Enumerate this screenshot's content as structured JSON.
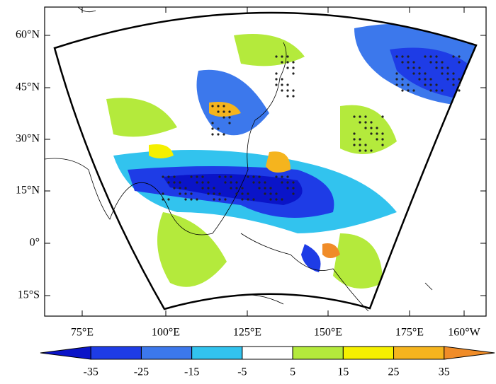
{
  "map": {
    "lat_labels": [
      "60°N",
      "45°N",
      "30°N",
      "15°N",
      "0°",
      "15°S"
    ],
    "lon_labels": [
      "75°E",
      "100°E",
      "125°E",
      "150°E",
      "175°E",
      "160°W"
    ],
    "colorbar": {
      "ticks": [
        "-35",
        "-25",
        "-15",
        "-5",
        "5",
        "15",
        "25",
        "35"
      ],
      "colors": [
        "#0a14c8",
        "#1e3ce6",
        "#3c78ec",
        "#32c3ee",
        "#ffffff",
        "#b4ea3c",
        "#f5f000",
        "#f5b41e",
        "#f08c28"
      ]
    }
  }
}
